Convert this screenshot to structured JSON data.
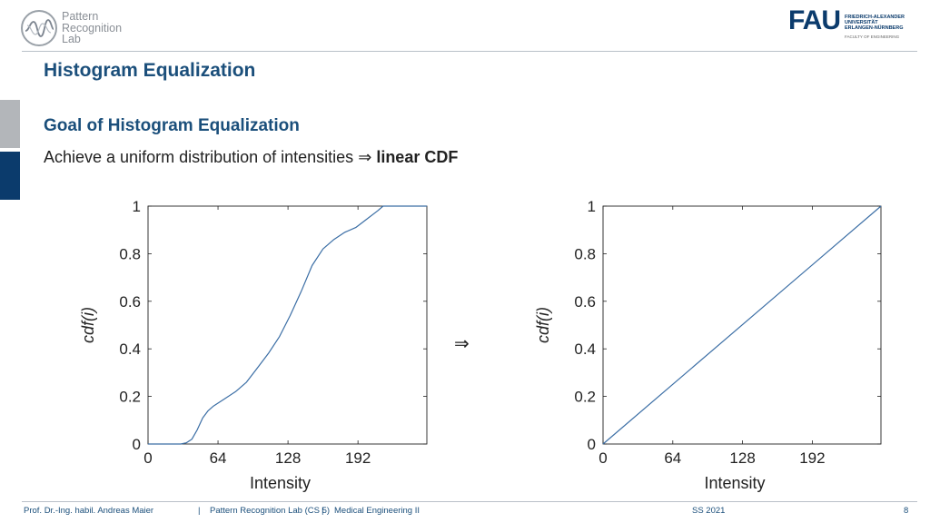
{
  "logo_left": {
    "lines": [
      "Pattern",
      "Recognition",
      "Lab"
    ]
  },
  "logo_right": {
    "word": "FAU",
    "lines": [
      "FRIEDRICH-ALEXANDER",
      "UNIVERSITÄT",
      "ERLANGEN-NÜRNBERG"
    ],
    "faculty": "FACULTY OF ENGINEERING"
  },
  "title": "Histogram Equalization",
  "subtitle": "Goal of Histogram Equalization",
  "goal": {
    "text": "Achieve a uniform distribution of intensities",
    "symbol": "⇒",
    "bold": "linear CDF"
  },
  "between_arrow": "⇒",
  "chart_data": [
    {
      "type": "line",
      "xlabel": "Intensity",
      "ylabel": "cdf(i)",
      "xlim": [
        0,
        255
      ],
      "ylim": [
        0,
        1
      ],
      "xticks": [
        0,
        64,
        128,
        192
      ],
      "yticks": [
        0,
        0.2,
        0.4,
        0.6,
        0.8,
        1
      ],
      "grid": false,
      "series": [
        {
          "color": "#3b6ea5",
          "x": [
            0,
            30,
            35,
            40,
            45,
            50,
            55,
            60,
            70,
            80,
            90,
            100,
            110,
            120,
            130,
            140,
            150,
            160,
            170,
            180,
            190,
            200,
            210,
            215,
            255
          ],
          "y": [
            0,
            0,
            0.005,
            0.02,
            0.06,
            0.11,
            0.14,
            0.16,
            0.19,
            0.22,
            0.26,
            0.32,
            0.38,
            0.45,
            0.54,
            0.64,
            0.75,
            0.82,
            0.86,
            0.89,
            0.91,
            0.945,
            0.98,
            1.0,
            1.0
          ]
        }
      ]
    },
    {
      "type": "line",
      "xlabel": "Intensity",
      "ylabel": "cdf(i)",
      "xlim": [
        0,
        255
      ],
      "ylim": [
        0,
        1
      ],
      "xticks": [
        0,
        64,
        128,
        192
      ],
      "yticks": [
        0,
        0.2,
        0.4,
        0.6,
        0.8,
        1
      ],
      "grid": false,
      "series": [
        {
          "color": "#3b6ea5",
          "x": [
            0,
            255
          ],
          "y": [
            0,
            1
          ]
        }
      ]
    }
  ],
  "footer": {
    "author": "Prof. Dr.-Ing. habil. Andreas Maier",
    "sep": "|",
    "lab": "Pattern Recognition Lab (CS 5)",
    "course": "Medical Engineering II",
    "term": "SS 2021",
    "page": "8"
  },
  "colors": {
    "accent": "#1b4f7b",
    "brand": "#0b3b6c",
    "line": "#3b6ea5"
  }
}
